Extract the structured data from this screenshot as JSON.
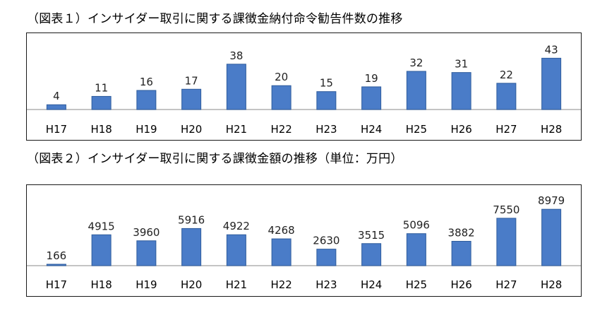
{
  "titles": {
    "chart1": "（図表１）インサイダー取引に関する課徴金納付命令勧告件数の推移",
    "chart2": "（図表２）インサイダー取引に関する課徴金額の推移（単位：万円）"
  },
  "colors": {
    "bar": "#4a7cc8",
    "bar_edge": "#2f5c9c",
    "axis": "#b0b0b0"
  },
  "chart_data": [
    {
      "type": "bar",
      "title": "（図表１）インサイダー取引に関する課徴金納付命令勧告件数の推移",
      "categories": [
        "H17",
        "H18",
        "H19",
        "H20",
        "H21",
        "H22",
        "H23",
        "H24",
        "H25",
        "H26",
        "H27",
        "H28"
      ],
      "values": [
        4,
        11,
        16,
        17,
        38,
        20,
        15,
        19,
        32,
        31,
        22,
        43
      ],
      "ylim": [
        0,
        45
      ],
      "grid": false,
      "data_labels": true
    },
    {
      "type": "bar",
      "title": "（図表２）インサイダー取引に関する課徴金額の推移（単位：万円）",
      "categories": [
        "H17",
        "H18",
        "H19",
        "H20",
        "H21",
        "H22",
        "H23",
        "H24",
        "H25",
        "H26",
        "H27",
        "H28"
      ],
      "values": [
        166,
        4915,
        3960,
        5916,
        4922,
        4268,
        2630,
        3515,
        5096,
        3882,
        7550,
        8979
      ],
      "ylim": [
        0,
        9000
      ],
      "grid": false,
      "data_labels": true
    }
  ]
}
